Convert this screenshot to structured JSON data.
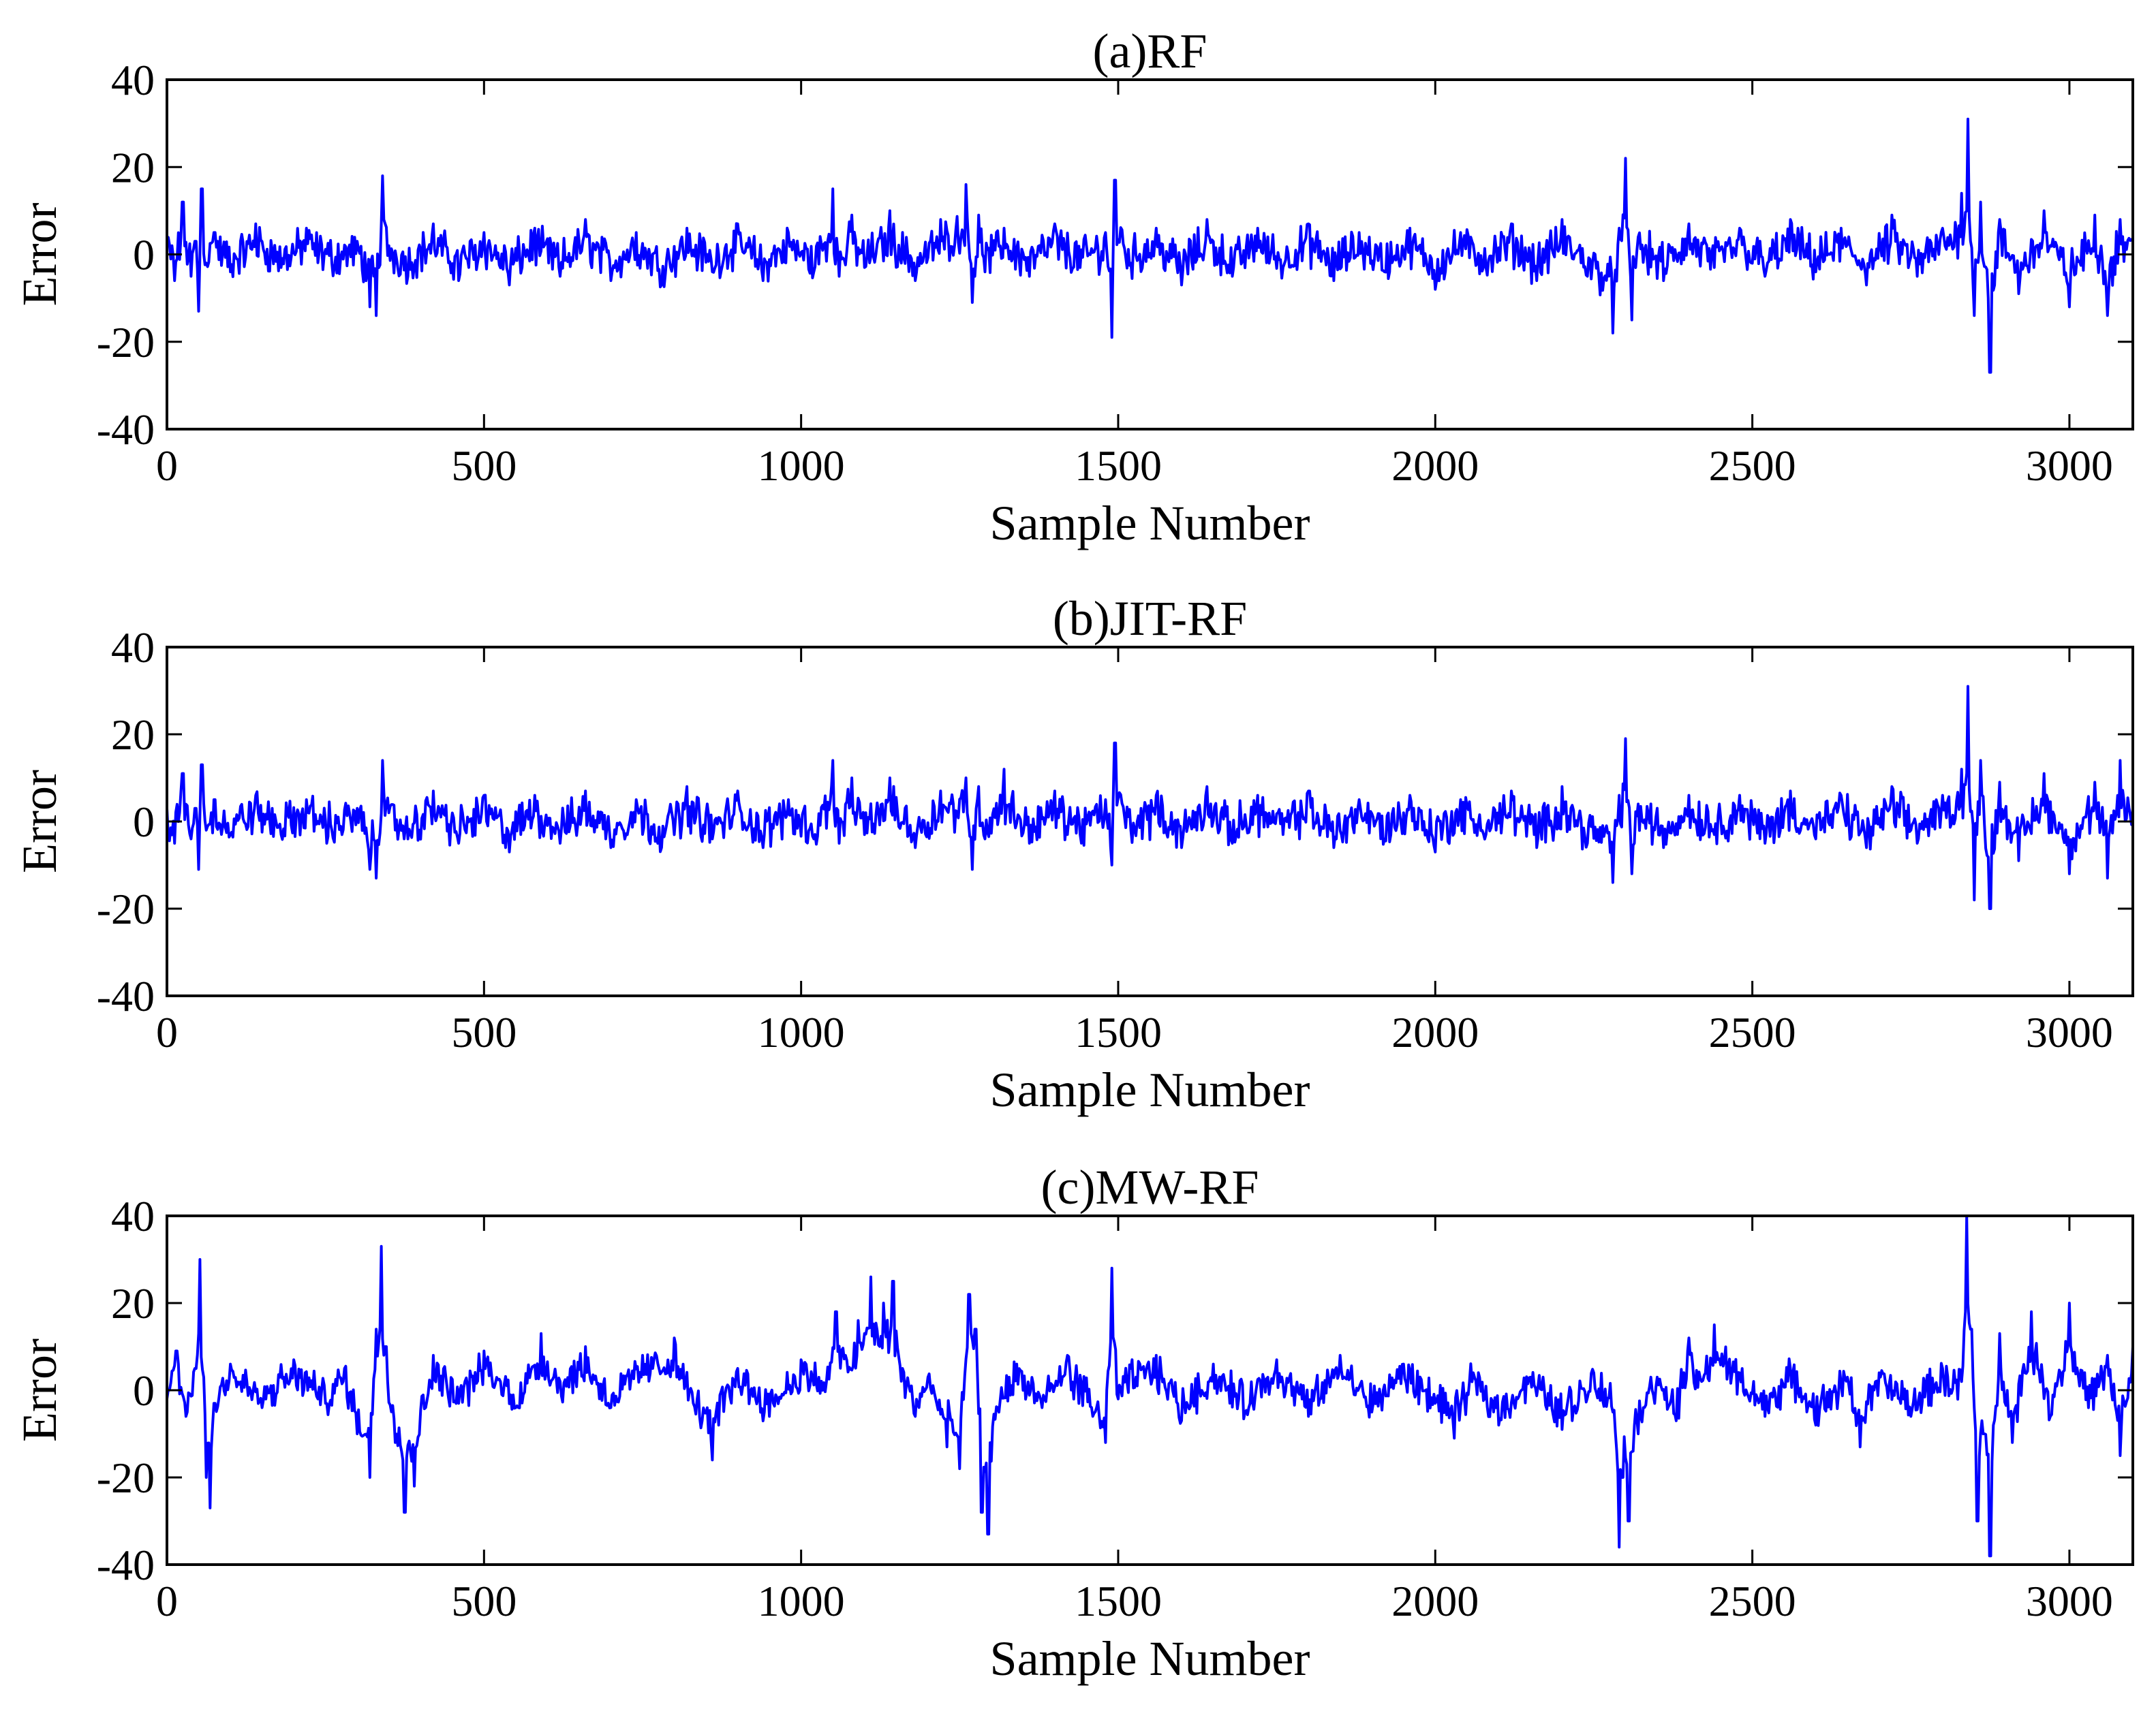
{
  "chart_data": [
    {
      "type": "line",
      "title": "(a)RF",
      "xlabel": "Sample Number",
      "ylabel": "Error",
      "xlim": [
        0,
        3100
      ],
      "ylim": [
        -40,
        40
      ],
      "xticks": [
        0,
        500,
        1000,
        1500,
        2000,
        2500,
        3000
      ],
      "yticks": [
        40,
        20,
        0,
        -20,
        -40
      ],
      "series": [
        {
          "color": "#0000FF",
          "x": [
            0,
            12,
            25,
            38,
            45,
            50,
            55,
            62,
            75,
            100,
            140,
            180,
            220,
            260,
            300,
            320,
            330,
            340,
            350,
            380,
            420,
            460,
            500,
            540,
            580,
            620,
            660,
            700,
            740,
            780,
            820,
            860,
            900,
            940,
            980,
            1020,
            1050,
            1060,
            1080,
            1100,
            1140,
            1180,
            1220,
            1260,
            1270,
            1280,
            1290,
            1320,
            1360,
            1400,
            1440,
            1480,
            1490,
            1495,
            1520,
            1560,
            1600,
            1640,
            1680,
            1720,
            1760,
            1800,
            1840,
            1880,
            1920,
            1960,
            2000,
            2040,
            2080,
            2120,
            2160,
            2200,
            2240,
            2280,
            2290,
            2300,
            2310,
            2320,
            2360,
            2400,
            2440,
            2480,
            2520,
            2560,
            2600,
            2640,
            2680,
            2720,
            2760,
            2800,
            2830,
            2840,
            2850,
            2860,
            2875,
            2890,
            2920,
            2960,
            3000,
            3040,
            3060,
            3080,
            3100
          ],
          "y": [
            4,
            -6,
            12,
            -5,
            3,
            -13,
            15,
            -2,
            5,
            -4,
            7,
            -3,
            6,
            -2,
            3,
            -12,
            -14,
            18,
            2,
            -5,
            7,
            -6,
            5,
            -7,
            6,
            -5,
            8,
            -6,
            5,
            -7,
            6,
            -4,
            7,
            -6,
            5,
            -4,
            15,
            -5,
            9,
            -3,
            10,
            -6,
            8,
            16,
            -11,
            9,
            -4,
            6,
            -5,
            7,
            -3,
            5,
            -19,
            17,
            -2,
            6,
            -7,
            8,
            -5,
            6,
            -3,
            7,
            -6,
            5,
            -4,
            6,
            -8,
            5,
            -3,
            7,
            -6,
            8,
            -5,
            -18,
            6,
            22,
            -15,
            4,
            -6,
            7,
            -3,
            6,
            -5,
            8,
            -4,
            6,
            -7,
            9,
            -5,
            6,
            14,
            31,
            -14,
            12,
            -27,
            8,
            -9,
            10,
            -12,
            9,
            -14,
            8,
            3
          ]
        }
      ]
    },
    {
      "type": "line",
      "title": "(b)JIT-RF",
      "xlabel": "Sample Number",
      "ylabel": "Error",
      "xlim": [
        0,
        3100
      ],
      "ylim": [
        -40,
        40
      ],
      "xticks": [
        0,
        500,
        1000,
        1500,
        2000,
        2500,
        3000
      ],
      "yticks": [
        40,
        20,
        0,
        -20,
        -40
      ],
      "series": [
        {
          "color": "#0000FF",
          "x": [
            0,
            12,
            25,
            38,
            45,
            50,
            55,
            62,
            75,
            100,
            140,
            180,
            220,
            260,
            300,
            320,
            330,
            340,
            350,
            380,
            420,
            460,
            500,
            540,
            580,
            620,
            660,
            700,
            740,
            780,
            820,
            860,
            900,
            940,
            980,
            1020,
            1050,
            1060,
            1080,
            1100,
            1140,
            1180,
            1220,
            1260,
            1270,
            1280,
            1290,
            1320,
            1360,
            1400,
            1440,
            1480,
            1490,
            1495,
            1520,
            1560,
            1600,
            1640,
            1680,
            1720,
            1760,
            1800,
            1840,
            1880,
            1920,
            1960,
            2000,
            2040,
            2080,
            2120,
            2160,
            2200,
            2240,
            2280,
            2290,
            2300,
            2310,
            2320,
            2360,
            2400,
            2440,
            2480,
            2520,
            2560,
            2600,
            2640,
            2680,
            2720,
            2760,
            2800,
            2830,
            2840,
            2850,
            2860,
            2875,
            2890,
            2920,
            2960,
            3000,
            3040,
            3060,
            3080,
            3100
          ],
          "y": [
            3,
            -5,
            11,
            -4,
            3,
            -11,
            13,
            -2,
            5,
            -3,
            6,
            -3,
            5,
            -2,
            3,
            -11,
            -13,
            14,
            2,
            -4,
            7,
            -5,
            6,
            -7,
            6,
            -5,
            7,
            -6,
            5,
            -6,
            8,
            -4,
            7,
            -6,
            5,
            -4,
            14,
            -5,
            10,
            -3,
            10,
            -6,
            7,
            10,
            -11,
            8,
            -4,
            12,
            -5,
            7,
            -3,
            5,
            -10,
            18,
            -2,
            6,
            -6,
            8,
            -5,
            6,
            -3,
            7,
            -6,
            5,
            -4,
            6,
            -7,
            5,
            -3,
            7,
            -6,
            8,
            -5,
            -14,
            6,
            19,
            -12,
            4,
            -6,
            6,
            -3,
            6,
            -5,
            7,
            -4,
            6,
            -6,
            8,
            -5,
            6,
            12,
            31,
            -18,
            14,
            -20,
            9,
            -9,
            11,
            -12,
            9,
            -13,
            14,
            3
          ]
        }
      ]
    },
    {
      "type": "line",
      "title": "(c)MW-RF",
      "xlabel": "Sample Number",
      "ylabel": "Error",
      "xlim": [
        0,
        3100
      ],
      "ylim": [
        -40,
        40
      ],
      "xticks": [
        0,
        500,
        1000,
        1500,
        2000,
        2500,
        3000
      ],
      "yticks": [
        40,
        20,
        0,
        -20,
        -40
      ],
      "series": [
        {
          "color": "#0000FF",
          "x": [
            0,
            15,
            30,
            45,
            52,
            58,
            62,
            68,
            75,
            100,
            150,
            200,
            250,
            280,
            300,
            320,
            330,
            338,
            345,
            360,
            375,
            390,
            420,
            460,
            500,
            550,
            590,
            620,
            660,
            700,
            750,
            800,
            830,
            860,
            870,
            900,
            950,
            1000,
            1040,
            1055,
            1070,
            1090,
            1110,
            1130,
            1145,
            1160,
            1180,
            1200,
            1230,
            1250,
            1265,
            1275,
            1285,
            1295,
            1310,
            1340,
            1380,
            1420,
            1460,
            1480,
            1490,
            1500,
            1520,
            1560,
            1600,
            1650,
            1700,
            1750,
            1800,
            1850,
            1900,
            1950,
            2000,
            2030,
            2060,
            2100,
            2150,
            2200,
            2250,
            2280,
            2290,
            2295,
            2305,
            2320,
            2340,
            2380,
            2400,
            2420,
            2440,
            2480,
            2520,
            2560,
            2600,
            2650,
            2670,
            2700,
            2750,
            2800,
            2830,
            2838,
            2845,
            2855,
            2865,
            2875,
            2890,
            2910,
            2940,
            2970,
            3000,
            3030,
            3060,
            3080,
            3100
          ],
          "y": [
            -2,
            9,
            -6,
            5,
            30,
            3,
            -20,
            -27,
            -3,
            6,
            -4,
            7,
            -3,
            5,
            -10,
            -20,
            14,
            33,
            10,
            -12,
            -28,
            -22,
            8,
            -3,
            9,
            -4,
            13,
            2,
            10,
            -4,
            8,
            12,
            -3,
            -16,
            -8,
            5,
            -6,
            7,
            2,
            18,
            8,
            16,
            26,
            20,
            25,
            5,
            -6,
            3,
            -13,
            -18,
            22,
            14,
            -28,
            -33,
            -4,
            6,
            -4,
            8,
            -6,
            -12,
            28,
            -2,
            5,
            8,
            -7,
            6,
            -5,
            7,
            -6,
            8,
            -5,
            6,
            -3,
            -11,
            4,
            -8,
            3,
            -9,
            4,
            -5,
            -36,
            -20,
            -30,
            -10,
            3,
            -7,
            12,
            2,
            15,
            4,
            -6,
            5,
            -8,
            3,
            -13,
            4,
            -6,
            5,
            2,
            40,
            14,
            -30,
            -10,
            -38,
            13,
            -12,
            18,
            -6,
            20,
            -4,
            8,
            -15,
            10
          ]
        }
      ]
    }
  ]
}
